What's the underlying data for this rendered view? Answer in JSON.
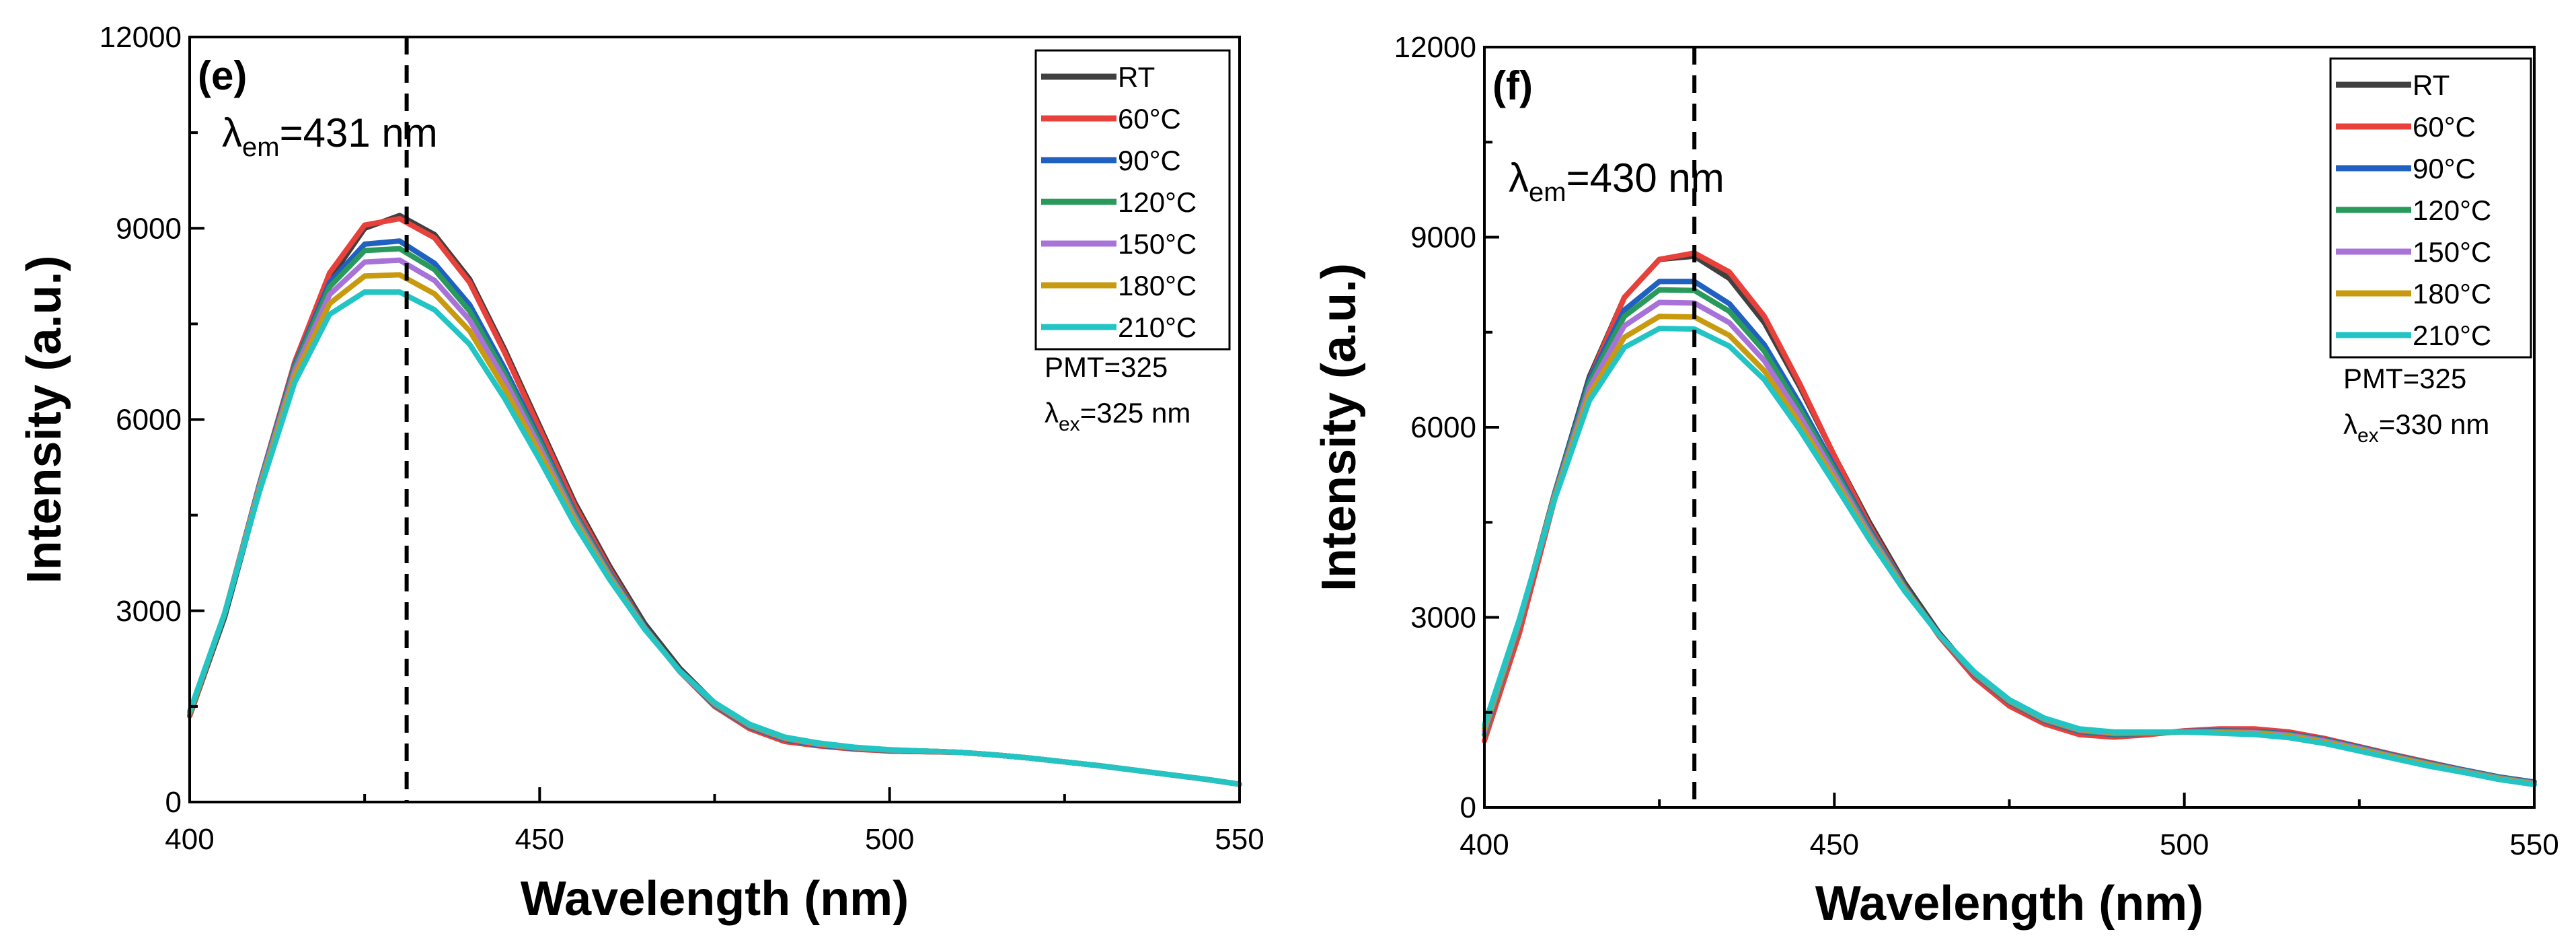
{
  "chart_data": [
    {
      "type": "line",
      "panel_label": "(e)",
      "xlabel": "Wavelength (nm)",
      "ylabel": "Intensity (a.u.)",
      "xlim": [
        400,
        550
      ],
      "ylim": [
        0,
        12000
      ],
      "xticks": [
        400,
        450,
        500,
        550
      ],
      "yticks": [
        0,
        3000,
        6000,
        9000,
        12000
      ],
      "legend_position": "top-right",
      "peak_marker_x": 431,
      "annotation": {
        "symbol": "λ",
        "sub": "em",
        "text": "=431 nm"
      },
      "notes": [
        {
          "text": "PMT=325"
        },
        {
          "symbol": "λ",
          "sub": "ex",
          "text": "=325 nm"
        }
      ],
      "x": [
        400,
        405,
        410,
        415,
        420,
        425,
        430,
        435,
        440,
        445,
        450,
        455,
        460,
        465,
        470,
        475,
        480,
        485,
        490,
        495,
        500,
        505,
        510,
        515,
        520,
        525,
        530,
        535,
        540,
        545,
        550
      ],
      "series": [
        {
          "name": "RT",
          "color": "#404040",
          "values": [
            1350,
            2900,
            4900,
            6800,
            8200,
            9000,
            9200,
            8900,
            8200,
            7100,
            5900,
            4700,
            3700,
            2800,
            2100,
            1550,
            1200,
            1000,
            900,
            840,
            800,
            790,
            780,
            740,
            690,
            630,
            570,
            500,
            430,
            360,
            280
          ]
        },
        {
          "name": "60°C",
          "color": "#e8403a",
          "values": [
            1350,
            2950,
            5000,
            6900,
            8300,
            9050,
            9150,
            8850,
            8150,
            7050,
            5850,
            4650,
            3650,
            2750,
            2050,
            1500,
            1150,
            950,
            880,
            830,
            800,
            790,
            780,
            740,
            690,
            630,
            570,
            500,
            430,
            360,
            280
          ]
        },
        {
          "name": "90°C",
          "color": "#2060c0",
          "values": [
            1380,
            2950,
            5000,
            6850,
            8150,
            8750,
            8800,
            8450,
            7800,
            6800,
            5700,
            4550,
            3600,
            2750,
            2050,
            1520,
            1180,
            980,
            890,
            840,
            810,
            800,
            780,
            740,
            690,
            630,
            570,
            500,
            430,
            360,
            280
          ]
        },
        {
          "name": "120°C",
          "color": "#2a9a5c",
          "values": [
            1380,
            2950,
            4980,
            6820,
            8080,
            8650,
            8680,
            8350,
            7700,
            6720,
            5650,
            4520,
            3580,
            2740,
            2050,
            1530,
            1190,
            990,
            900,
            845,
            810,
            800,
            780,
            740,
            690,
            630,
            570,
            500,
            430,
            360,
            280
          ]
        },
        {
          "name": "150°C",
          "color": "#a873d8",
          "values": [
            1400,
            2960,
            4960,
            6760,
            7960,
            8470,
            8500,
            8180,
            7560,
            6620,
            5570,
            4470,
            3550,
            2730,
            2050,
            1540,
            1200,
            1000,
            905,
            850,
            815,
            800,
            780,
            740,
            690,
            630,
            570,
            500,
            430,
            360,
            280
          ]
        },
        {
          "name": "180°C",
          "color": "#c89a10",
          "values": [
            1400,
            2960,
            4920,
            6680,
            7820,
            8250,
            8270,
            7970,
            7390,
            6490,
            5480,
            4420,
            3520,
            2720,
            2060,
            1550,
            1210,
            1010,
            915,
            855,
            820,
            800,
            780,
            740,
            690,
            630,
            570,
            500,
            430,
            360,
            280
          ]
        },
        {
          "name": "210°C",
          "color": "#22c4c4",
          "values": [
            1420,
            2960,
            4880,
            6580,
            7650,
            8000,
            8000,
            7720,
            7180,
            6330,
            5370,
            4360,
            3490,
            2710,
            2060,
            1560,
            1220,
            1020,
            925,
            860,
            820,
            800,
            780,
            740,
            690,
            630,
            570,
            500,
            430,
            360,
            280
          ]
        }
      ]
    },
    {
      "type": "line",
      "panel_label": "(f)",
      "xlabel": "Wavelength (nm)",
      "ylabel": "Intensity (a.u.)",
      "xlim": [
        400,
        550
      ],
      "ylim": [
        0,
        12000
      ],
      "xticks": [
        400,
        450,
        500,
        550
      ],
      "yticks": [
        0,
        3000,
        6000,
        9000,
        12000
      ],
      "legend_position": "top-right",
      "peak_marker_x": 430,
      "annotation": {
        "symbol": "λ",
        "sub": "em",
        "text": "=430 nm"
      },
      "notes": [
        {
          "text": "PMT=325"
        },
        {
          "symbol": "λ",
          "sub": "ex",
          "text": "=330 nm"
        }
      ],
      "x": [
        400,
        405,
        410,
        415,
        420,
        425,
        430,
        435,
        440,
        445,
        450,
        455,
        460,
        465,
        470,
        475,
        480,
        485,
        490,
        495,
        500,
        505,
        510,
        515,
        520,
        525,
        530,
        535,
        540,
        545,
        550
      ],
      "series": [
        {
          "name": "RT",
          "color": "#404040",
          "values": [
            1150,
            2900,
            4950,
            6800,
            8050,
            8650,
            8700,
            8350,
            7650,
            6650,
            5550,
            4500,
            3550,
            2750,
            2100,
            1650,
            1350,
            1180,
            1130,
            1160,
            1200,
            1220,
            1220,
            1180,
            1080,
            950,
            820,
            700,
            590,
            480,
            400
          ]
        },
        {
          "name": "60°C",
          "color": "#e8403a",
          "values": [
            1050,
            2750,
            4850,
            6750,
            8050,
            8650,
            8750,
            8450,
            7750,
            6700,
            5550,
            4450,
            3500,
            2700,
            2050,
            1600,
            1320,
            1150,
            1110,
            1150,
            1210,
            1240,
            1240,
            1190,
            1090,
            960,
            830,
            710,
            590,
            480,
            400
          ]
        },
        {
          "name": "90°C",
          "color": "#2060c0",
          "values": [
            1150,
            2900,
            4950,
            6750,
            7850,
            8300,
            8300,
            7950,
            7300,
            6380,
            5380,
            4390,
            3490,
            2720,
            2100,
            1660,
            1370,
            1200,
            1150,
            1170,
            1200,
            1210,
            1200,
            1160,
            1070,
            950,
            820,
            700,
            590,
            480,
            400
          ]
        },
        {
          "name": "120°C",
          "color": "#2a9a5c",
          "values": [
            1150,
            2900,
            4930,
            6700,
            7750,
            8170,
            8160,
            7830,
            7200,
            6300,
            5330,
            4360,
            3480,
            2720,
            2110,
            1670,
            1380,
            1210,
            1160,
            1170,
            1190,
            1200,
            1190,
            1150,
            1060,
            940,
            810,
            690,
            580,
            470,
            390
          ]
        },
        {
          "name": "150°C",
          "color": "#a873d8",
          "values": [
            1200,
            2920,
            4900,
            6620,
            7600,
            7970,
            7960,
            7650,
            7050,
            6190,
            5260,
            4320,
            3460,
            2720,
            2120,
            1680,
            1390,
            1220,
            1170,
            1180,
            1190,
            1190,
            1180,
            1140,
            1050,
            930,
            800,
            680,
            570,
            460,
            380
          ]
        },
        {
          "name": "180°C",
          "color": "#c89a10",
          "values": [
            1250,
            2950,
            4880,
            6520,
            7420,
            7750,
            7740,
            7450,
            6890,
            6070,
            5180,
            4270,
            3440,
            2720,
            2130,
            1690,
            1400,
            1230,
            1180,
            1180,
            1190,
            1180,
            1170,
            1120,
            1030,
            910,
            790,
            670,
            560,
            450,
            370
          ]
        },
        {
          "name": "210°C",
          "color": "#22c4c4",
          "values": [
            1300,
            2970,
            4850,
            6420,
            7260,
            7560,
            7550,
            7280,
            6750,
            5970,
            5110,
            4230,
            3420,
            2720,
            2140,
            1700,
            1410,
            1240,
            1190,
            1190,
            1190,
            1170,
            1150,
            1100,
            1010,
            890,
            770,
            650,
            550,
            440,
            360
          ]
        }
      ]
    }
  ]
}
